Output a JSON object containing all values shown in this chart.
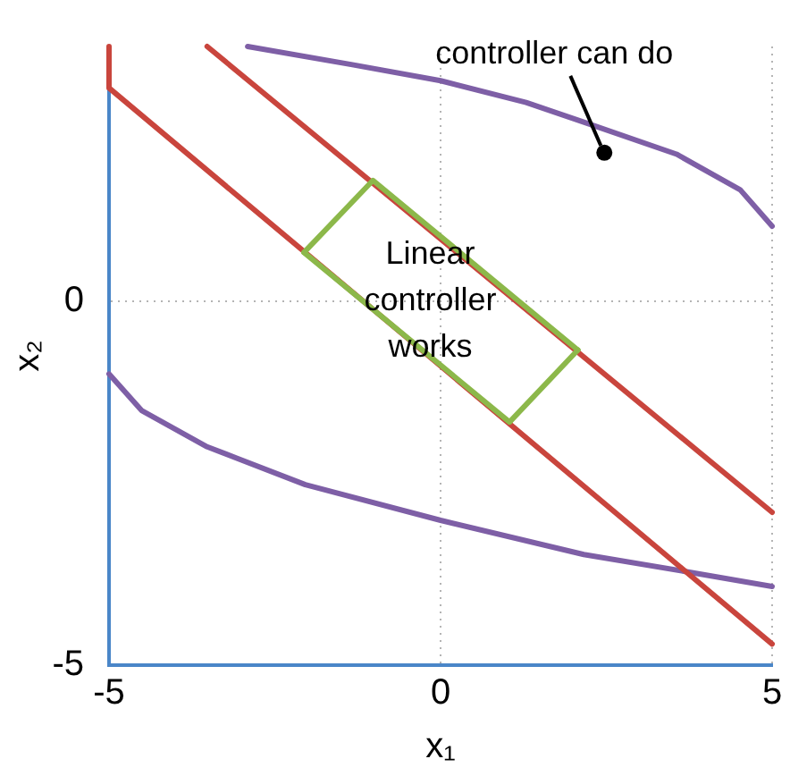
{
  "chart_data": {
    "type": "line",
    "xlabel": "x₁",
    "ylabel": "x₂",
    "xlim": [
      -5,
      5
    ],
    "ylim": [
      -5,
      3.5
    ],
    "xticks": [
      -5,
      0,
      5
    ],
    "yticks": [
      -5,
      0
    ],
    "grid": true,
    "legend": false,
    "marker": "none",
    "line_style": "solid",
    "series": [
      {
        "color": "#7e5fa6",
        "x": [
          -2.91,
          -1.33,
          0,
          1.29,
          2.16,
          3.56,
          4.52,
          5
        ],
        "values": [
          3.5,
          3.25,
          3.03,
          2.73,
          2.46,
          2.02,
          1.53,
          1.03
        ]
      },
      {
        "color": "#7e5fa6",
        "x": [
          -5,
          -4.51,
          -3.52,
          -2.04,
          0,
          2.16,
          3.73,
          5
        ],
        "values": [
          -1,
          -1.5,
          -2,
          -2.52,
          -3.01,
          -3.48,
          -3.72,
          -3.92
        ]
      },
      {
        "color": "#c9453d",
        "x": [
          -5,
          -5,
          5
        ],
        "values": [
          3.5,
          2.93,
          -4.71
        ]
      },
      {
        "color": "#c9453d",
        "x": [
          -3.52,
          5
        ],
        "values": [
          3.5,
          -2.9
        ]
      },
      {
        "color": "#8cb84a",
        "x": [
          -2.06,
          -1.02,
          2.07
        ],
        "values": [
          0.67,
          1.66,
          -0.67
        ]
      },
      {
        "color": "#8cb84a",
        "x": [
          -2.06,
          1.04,
          2.07
        ],
        "values": [
          0.67,
          -1.66,
          -0.67
        ]
      }
    ],
    "annotations": [
      "Linear controller works",
      {
        "text": "controller can do",
        "x": 2.47,
        "y": 2.04
      }
    ]
  }
}
